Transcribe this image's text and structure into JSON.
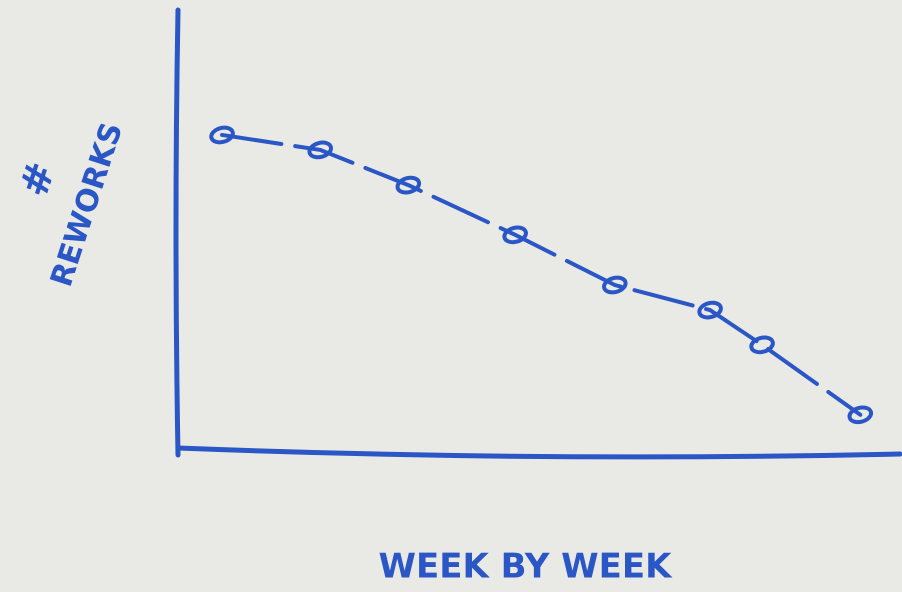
{
  "chart_data": {
    "type": "line",
    "y_label_symbol": "#",
    "y_label": "REWORKS",
    "x_label": "WEEK BY WEEK",
    "x": [
      6.1,
      19.7,
      31.9,
      46.7,
      60.5,
      73.7,
      80.9,
      94.5
    ],
    "series": [
      {
        "color": "#2a56c6",
        "values": [
          71.6,
          68.2,
          60.2,
          48.9,
          37.5,
          31.8,
          23.9,
          8.0
        ]
      }
    ],
    "xlim": [
      0,
      100
    ],
    "ylim": [
      0,
      100
    ]
  }
}
